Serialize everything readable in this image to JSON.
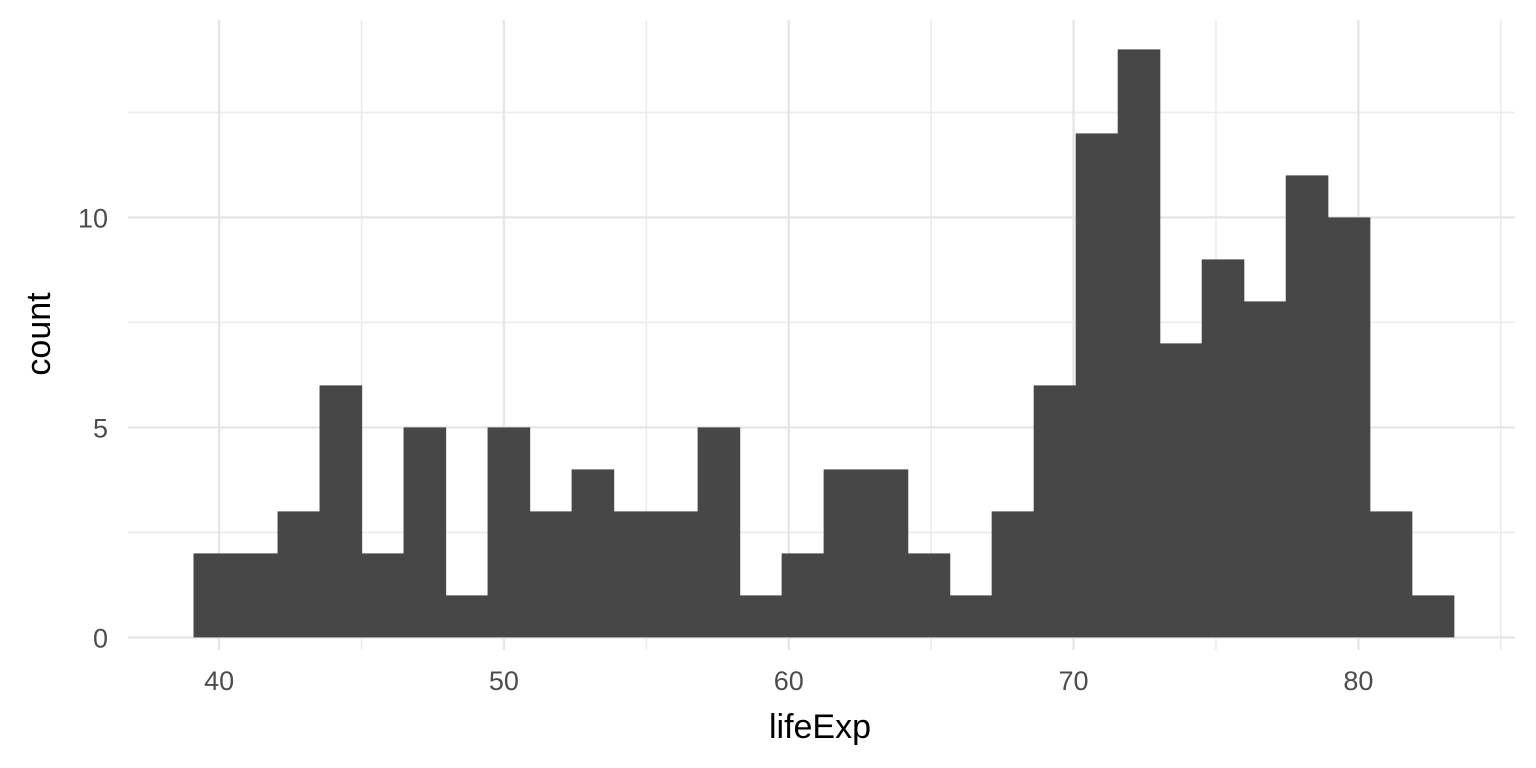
{
  "chart_data": {
    "type": "bar",
    "subtype": "histogram",
    "title": "",
    "xlabel": "lifeExp",
    "ylabel": "count",
    "xlim": [
      36.8,
      85.5
    ],
    "ylim": [
      -0.3,
      14.7
    ],
    "x_ticks": [
      40,
      50,
      60,
      70,
      80
    ],
    "y_ticks": [
      0,
      5,
      10
    ],
    "grid": true,
    "legend": "none",
    "bar_color": "#474747",
    "bin_width": 1.475,
    "bin_start": 39.1,
    "values": [
      2,
      2,
      3,
      6,
      2,
      5,
      1,
      5,
      3,
      4,
      3,
      3,
      5,
      1,
      2,
      4,
      4,
      2,
      1,
      3,
      6,
      12,
      14,
      7,
      9,
      8,
      11,
      10,
      3,
      1
    ]
  }
}
